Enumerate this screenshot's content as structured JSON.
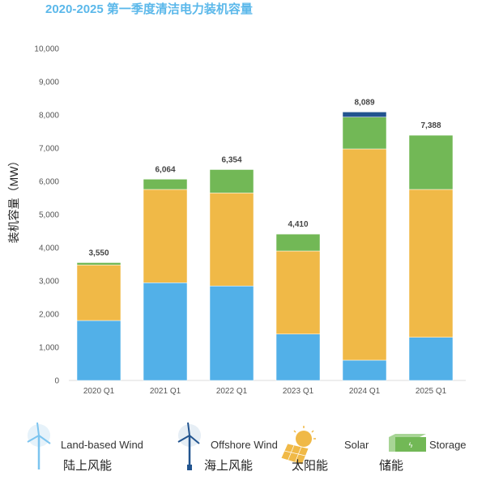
{
  "chart_data": {
    "type": "bar",
    "stacked": true,
    "title": "2020-2025 第一季度清洁电力装机容量",
    "xlabel": "",
    "ylabel": "装机容量（MW）",
    "ylim": [
      0,
      10000
    ],
    "yticks": [
      "0",
      "1,000",
      "2,000",
      "3,000",
      "4,000",
      "5,000",
      "6,000",
      "7,000",
      "8,000",
      "9,000",
      "10,000"
    ],
    "categories": [
      "2020 Q1",
      "2021 Q1",
      "2022 Q1",
      "2023 Q1",
      "2024 Q1",
      "2025 Q1"
    ],
    "totals": [
      "3,550",
      "6,064",
      "6,354",
      "4,410",
      "8,089",
      "7,388"
    ],
    "series": [
      {
        "name": "Land-based Wind",
        "name_zh": "陆上风能",
        "color": "#52b0e8",
        "values": [
          1805,
          2943,
          2846,
          1398,
          610,
          1300
        ]
      },
      {
        "name": "Solar",
        "name_zh": "太阳能",
        "color": "#f0b947",
        "values": [
          1675,
          2813,
          2804,
          2504,
          6366,
          4456
        ]
      },
      {
        "name": "Storage",
        "name_zh": "储能",
        "color": "#72b856",
        "values": [
          70,
          308,
          704,
          508,
          959,
          1632
        ]
      },
      {
        "name": "Offshore Wind",
        "name_zh": "海上风能",
        "color": "#22548f",
        "values": [
          0,
          0,
          0,
          0,
          154,
          0
        ]
      }
    ],
    "legend": {
      "position": "bottom"
    },
    "grid": false
  }
}
